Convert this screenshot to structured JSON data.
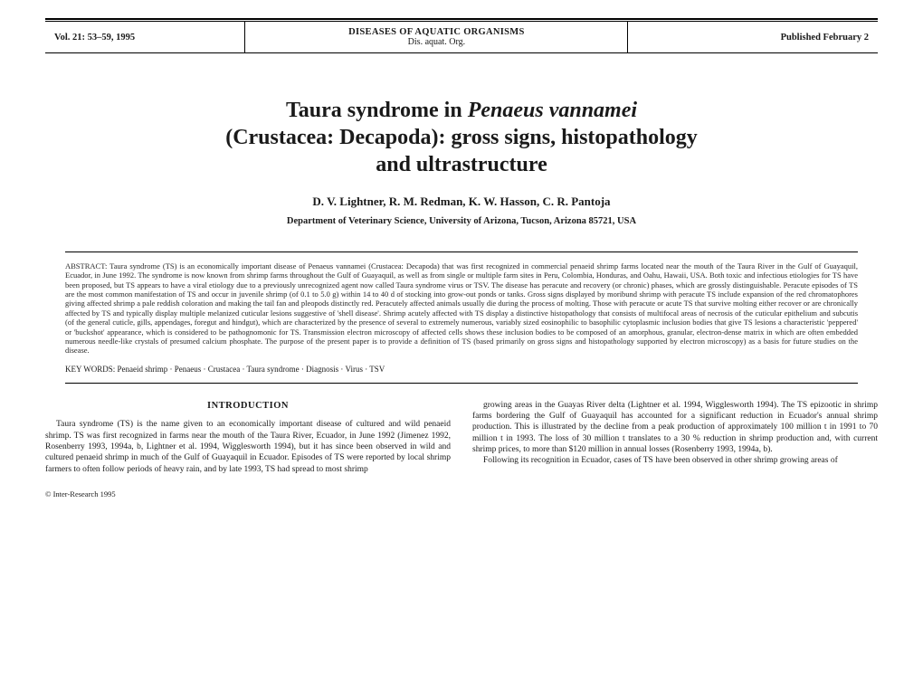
{
  "header": {
    "volume": "Vol. 21: 53–59, 1995",
    "journal_name": "DISEASES OF AQUATIC ORGANISMS",
    "journal_abbrev": "Dis. aquat. Org.",
    "published": "Published February 2"
  },
  "title": {
    "line1_pre": "Taura syndrome in ",
    "line1_ital": "Penaeus vannamei",
    "line2": "(Crustacea: Decapoda): gross signs, histopathology",
    "line3": "and ultrastructure"
  },
  "authors": "D. V. Lightner, R. M. Redman, K. W. Hasson, C. R. Pantoja",
  "affiliation": "Department of Veterinary Science, University of Arizona, Tucson, Arizona 85721, USA",
  "abstract_label": "ABSTRACT:",
  "abstract": "Taura syndrome (TS) is an economically important disease of Penaeus vannamei (Crustacea: Decapoda) that was first recognized in commercial penaeid shrimp farms located near the mouth of the Taura River in the Gulf of Guayaquil, Ecuador, in June 1992. The syndrome is now known from shrimp farms throughout the Gulf of Guayaquil, as well as from single or multiple farm sites in Peru, Colombia, Honduras, and Oahu, Hawaii, USA. Both toxic and infectious etiologies for TS have been proposed, but TS appears to have a viral etiology due to a previously unrecognized agent now called Taura syndrome virus or TSV. The disease has peracute and recovery (or chronic) phases, which are grossly distinguishable. Peracute episodes of TS are the most common manifestation of TS and occur in juvenile shrimp (of 0.1 to 5.0 g) within 14 to 40 d of stocking into grow-out ponds or tanks. Gross signs displayed by moribund shrimp with peracute TS include expansion of the red chromatophores giving affected shrimp a pale reddish coloration and making the tail fan and pleopods distinctly red. Peracutely affected animals usually die during the process of molting. Those with peracute or acute TS that survive molting either recover or are chronically affected by TS and typically display multiple melanized cuticular lesions suggestive of 'shell disease'. Shrimp acutely affected with TS display a distinctive histopathology that consists of multifocal areas of necrosis of the cuticular epithelium and subcutis (of the general cuticle, gills, appendages, foregut and hindgut), which are characterized by the presence of several to extremely numerous, variably sized eosinophilic to basophilic cytoplasmic inclusion bodies that give TS lesions a characteristic 'peppered' or 'buckshot' appearance, which is considered to be pathognomonic for TS. Transmission electron microscopy of affected cells shows these inclusion bodies to be composed of an amorphous, granular, electron-dense matrix in which are often embedded numerous needle-like crystals of presumed calcium phosphate. The purpose of the present paper is to provide a definition of TS (based primarily on gross signs and histopathology supported by electron microscopy) as a basis for future studies on the disease.",
  "keywords_label": "KEY WORDS:",
  "keywords": "Penaeid shrimp · Penaeus · Crustacea · Taura syndrome · Diagnosis · Virus · TSV",
  "introduction": {
    "heading": "INTRODUCTION",
    "col1": "Taura syndrome (TS) is the name given to an economically important disease of cultured and wild penaeid shrimp. TS was first recognized in farms near the mouth of the Taura River, Ecuador, in June 1992 (Jimenez 1992, Rosenberry 1993, 1994a, b, Lightner et al. 1994, Wigglesworth 1994), but it has since been observed in wild and cultured penaeid shrimp in much of the Gulf of Guayaquil in Ecuador. Episodes of TS were reported by local shrimp farmers to often follow periods of heavy rain, and by late 1993, TS had spread to most shrimp",
    "col2": "growing areas in the Guayas River delta (Lightner et al. 1994, Wigglesworth 1994). The TS epizootic in shrimp farms bordering the Gulf of Guayaquil has accounted for a significant reduction in Ecuador's annual shrimp production. This is illustrated by the decline from a peak production of approximately 100 million t in 1991 to 70 million t in 1993. The loss of 30 million t translates to a 30 % reduction in shrimp production and, with current shrimp prices, to more than $120 million in annual losses (Rosenberry 1993, 1994a, b).",
    "col2b": "Following its recognition in Ecuador, cases of TS have been observed in other shrimp growing areas of"
  },
  "footer": "© Inter-Research 1995"
}
